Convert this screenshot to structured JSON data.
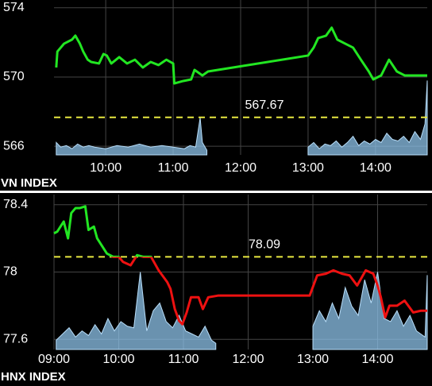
{
  "chart_data": [
    {
      "type": "line",
      "title": "VN INDEX",
      "x": [
        556,
        557,
        563,
        570,
        573,
        577,
        580,
        584,
        587,
        594,
        598,
        601,
        605,
        612,
        619,
        626,
        633,
        640,
        647,
        654,
        660,
        661,
        669,
        676,
        679,
        686,
        691,
        780,
        785,
        789,
        796,
        801,
        806,
        813,
        820,
        827,
        834,
        838,
        845,
        852,
        859,
        866,
        886
      ],
      "series": [
        {
          "color": "#22e622",
          "values": [
            570.55,
            571.47,
            571.93,
            572.16,
            572.39,
            571.93,
            571.47,
            571.0,
            570.87,
            570.78,
            571.33,
            571.24,
            570.78,
            571.15,
            570.78,
            571.0,
            570.55,
            570.87,
            570.69,
            571.0,
            570.78,
            569.63,
            569.77,
            569.86,
            570.41,
            570.09,
            570.32,
            571.24,
            571.7,
            572.25,
            572.39,
            572.85,
            572.16,
            571.93,
            571.7,
            571.0,
            570.32,
            569.86,
            570.09,
            571.0,
            570.32,
            570.09,
            570.09
          ]
        }
      ],
      "reference_line": 567.67,
      "reference_color": "#e8e840",
      "volume": {
        "color": "#8ec3ea",
        "vlim": [
          0,
          100
        ],
        "x": [
          556,
          560,
          565,
          570,
          575,
          580,
          585,
          590,
          600,
          610,
          620,
          630,
          640,
          650,
          660,
          670,
          675,
          680,
          684,
          686,
          690,
          735,
          780,
          785,
          790,
          795,
          800,
          805,
          810,
          815,
          820,
          825,
          830,
          835,
          840,
          845,
          850,
          855,
          860,
          865,
          870,
          875,
          880,
          884,
          886
        ],
        "values": [
          8,
          5,
          6,
          4,
          7,
          5,
          6,
          5,
          4,
          6,
          5,
          7,
          5,
          6,
          5,
          4,
          6,
          5,
          24,
          8,
          3,
          null,
          5,
          8,
          4,
          7,
          6,
          9,
          5,
          8,
          12,
          6,
          9,
          7,
          10,
          8,
          14,
          10,
          9,
          12,
          8,
          15,
          10,
          20,
          48
        ]
      },
      "xlim": [
        554,
        886
      ],
      "ylim": [
        565.5,
        574.45
      ],
      "xticks": [
        {
          "value": 600,
          "label": "10:00"
        },
        {
          "value": 660,
          "label": "11:00"
        },
        {
          "value": 720,
          "label": "12:00"
        },
        {
          "value": 780,
          "label": "13:00"
        },
        {
          "value": 840,
          "label": "14:00"
        }
      ],
      "yticks": [
        566,
        570,
        574
      ],
      "grid": true
    },
    {
      "type": "line",
      "title": "HNX INDEX",
      "x": [
        540,
        543,
        549,
        553,
        556,
        560,
        564,
        569,
        572,
        577,
        580,
        584,
        589,
        595,
        600,
        604,
        611,
        617,
        623,
        630,
        637,
        645,
        648,
        652,
        656,
        659,
        663,
        667,
        674,
        678,
        683,
        692,
        777,
        784,
        792,
        799,
        807,
        814,
        821,
        829,
        836,
        840,
        843,
        847,
        851,
        858,
        865,
        873,
        880,
        886
      ],
      "series": [
        {
          "color": "#22e622",
          "below_color": "#ee1111",
          "values": [
            78.23,
            78.24,
            78.3,
            78.2,
            78.35,
            78.38,
            78.38,
            78.39,
            78.25,
            78.27,
            78.2,
            78.16,
            78.11,
            78.09,
            78.09,
            78.06,
            78.04,
            78.1,
            78.09,
            78.09,
            78.01,
            77.94,
            77.9,
            77.78,
            77.71,
            77.69,
            77.76,
            77.85,
            77.85,
            77.78,
            77.85,
            77.86,
            77.86,
            77.98,
            77.99,
            78.01,
            77.99,
            77.98,
            77.92,
            78.01,
            77.99,
            77.92,
            77.85,
            77.73,
            77.8,
            77.8,
            77.83,
            77.76,
            77.77,
            77.77
          ]
        }
      ],
      "reference_line": 78.09,
      "reference_color": "#e8e840",
      "volume": {
        "color": "#8ec3ea",
        "vlim": [
          0,
          100
        ],
        "x": [
          542,
          548,
          554,
          560,
          566,
          572,
          578,
          584,
          590,
          596,
          602,
          608,
          614,
          620,
          626,
          632,
          638,
          644,
          650,
          656,
          662,
          668,
          674,
          680,
          686,
          690,
          735,
          780,
          786,
          792,
          798,
          804,
          810,
          816,
          822,
          828,
          834,
          840,
          846,
          852,
          858,
          864,
          870,
          876,
          880,
          884,
          886
        ],
        "values": [
          6,
          10,
          14,
          8,
          12,
          9,
          16,
          10,
          20,
          12,
          18,
          15,
          14,
          50,
          12,
          25,
          30,
          18,
          14,
          22,
          12,
          10,
          8,
          15,
          6,
          4,
          null,
          15,
          25,
          18,
          30,
          20,
          40,
          28,
          22,
          45,
          30,
          50,
          20,
          18,
          25,
          15,
          22,
          12,
          10,
          8,
          48
        ]
      },
      "xlim": [
        540,
        886
      ],
      "ylim": [
        77.54,
        78.46
      ],
      "xticks": [
        {
          "value": 540,
          "label": "09:00"
        },
        {
          "value": 600,
          "label": "10:00"
        },
        {
          "value": 660,
          "label": "11:00"
        },
        {
          "value": 720,
          "label": "12:00"
        },
        {
          "value": 780,
          "label": "13:00"
        },
        {
          "value": 840,
          "label": "14:00"
        }
      ],
      "yticks": [
        77.6,
        78,
        78.4
      ],
      "grid": true
    }
  ]
}
